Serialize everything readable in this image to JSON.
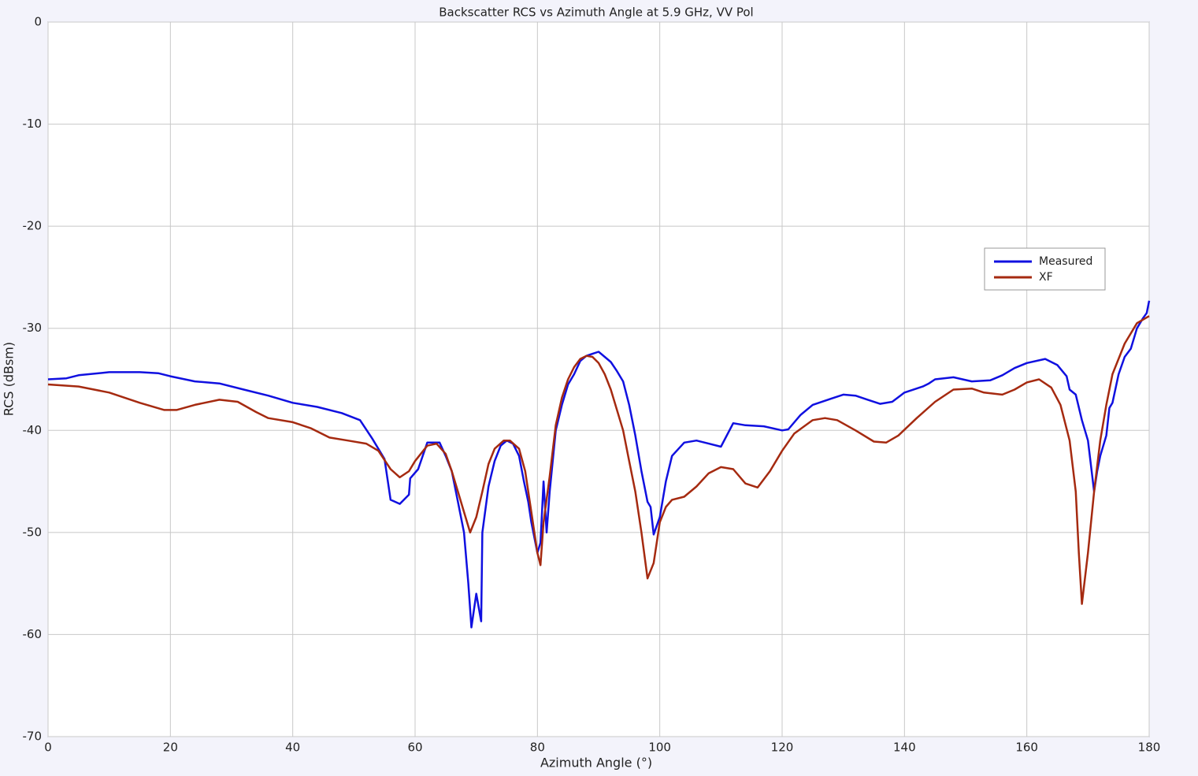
{
  "chart_data": {
    "type": "line",
    "title": "Backscatter RCS vs Azimuth Angle at 5.9 GHz, VV Pol",
    "x_label": "Azimuth Angle (°)",
    "y_label": "RCS (dBsm)",
    "xlim": [
      0,
      180
    ],
    "xticks": [
      0,
      20,
      40,
      60,
      80,
      100,
      120,
      140,
      160,
      180
    ],
    "ylim": [
      -70,
      0
    ],
    "yticks": [
      0,
      -10,
      -20,
      -30,
      -40,
      -50,
      -60,
      -70
    ],
    "grid": true,
    "legend": "right",
    "series": [
      {
        "name": "Measured",
        "color": "#1010e0",
        "x": [
          0,
          3,
          5,
          10,
          15,
          18,
          20,
          24,
          28,
          32,
          36,
          40,
          44,
          48,
          51,
          53,
          55,
          56,
          57.5,
          59,
          59.2,
          60.5,
          62,
          64,
          65,
          66,
          67,
          68,
          68.7,
          69.2,
          70,
          70.8,
          71,
          72,
          73,
          74,
          75,
          76,
          77,
          77.8,
          78.5,
          79,
          80,
          80.5,
          81,
          81.5,
          82,
          83,
          84,
          85,
          86,
          87,
          88,
          89,
          90,
          91,
          92,
          93,
          94,
          95,
          96,
          97,
          98,
          98.5,
          99,
          100,
          101,
          102,
          104,
          106,
          108,
          110,
          112,
          114,
          117,
          120,
          121,
          123,
          125,
          128,
          130,
          132,
          134,
          136,
          138,
          140,
          143,
          144,
          145,
          148,
          151,
          154,
          156,
          158,
          160,
          163,
          165,
          166.5,
          167,
          168,
          169,
          170,
          171,
          171.5,
          172,
          173,
          173.5,
          174,
          175,
          176,
          177,
          178,
          179,
          179.6,
          180
        ],
        "values": [
          -35,
          -34.9,
          -34.6,
          -34.3,
          -34.3,
          -34.4,
          -34.7,
          -35.2,
          -35.4,
          -36,
          -36.6,
          -37.3,
          -37.7,
          -38.3,
          -39,
          -40.8,
          -42.8,
          -46.8,
          -47.2,
          -46.3,
          -44.7,
          -43.8,
          -41.2,
          -41.2,
          -42.5,
          -44,
          -47,
          -50,
          -55,
          -59.3,
          -56,
          -58.7,
          -50,
          -45.5,
          -43,
          -41.5,
          -41,
          -41.3,
          -42.5,
          -45,
          -47,
          -49,
          -52,
          -51,
          -45,
          -50,
          -46,
          -40,
          -37.5,
          -35.5,
          -34.5,
          -33.2,
          -32.7,
          -32.5,
          -32.3,
          -32.8,
          -33.3,
          -34.2,
          -35.2,
          -37.5,
          -40.5,
          -44,
          -47,
          -47.5,
          -50.2,
          -48.5,
          -45,
          -42.5,
          -41.2,
          -41,
          -41.3,
          -41.6,
          -39.3,
          -39.5,
          -39.6,
          -40,
          -39.9,
          -38.5,
          -37.5,
          -36.9,
          -36.5,
          -36.6,
          -37,
          -37.4,
          -37.2,
          -36.3,
          -35.7,
          -35.4,
          -35,
          -34.8,
          -35.2,
          -35.1,
          -34.6,
          -33.9,
          -33.4,
          -33,
          -33.6,
          -34.7,
          -36,
          -36.5,
          -39,
          -41,
          -46,
          -44,
          -42.5,
          -40.5,
          -37.8,
          -37.3,
          -34.5,
          -32.8,
          -32,
          -30,
          -29,
          -28.5,
          -27.3
        ]
      },
      {
        "name": "XF",
        "color": "#a52a10",
        "x": [
          0,
          5,
          10,
          15,
          19,
          21,
          24,
          28,
          31,
          34,
          36,
          40,
          43,
          46,
          49,
          52,
          54,
          56,
          57.5,
          59,
          60,
          62,
          63.5,
          65,
          66,
          67,
          68,
          69,
          70,
          71,
          72,
          73,
          74.5,
          75.5,
          77,
          78,
          79,
          80,
          80.5,
          81,
          82,
          83,
          84,
          85,
          86,
          87,
          88,
          89,
          90,
          91,
          92,
          93,
          94,
          95,
          96,
          97,
          98,
          99,
          100,
          101,
          102,
          104,
          106,
          108,
          110,
          112,
          114,
          116,
          118,
          120,
          122,
          125,
          127,
          129,
          132,
          135,
          137,
          139,
          142,
          145,
          148,
          151,
          153,
          156,
          158,
          160,
          162,
          164,
          165.5,
          167,
          168,
          168.5,
          169,
          170,
          171,
          172,
          173,
          174,
          176,
          178,
          180
        ],
        "values": [
          -35.5,
          -35.7,
          -36.3,
          -37.3,
          -38,
          -38,
          -37.5,
          -37,
          -37.2,
          -38.2,
          -38.8,
          -39.2,
          -39.8,
          -40.7,
          -41,
          -41.3,
          -42,
          -43.8,
          -44.6,
          -44,
          -43,
          -41.5,
          -41.3,
          -42.3,
          -44,
          -46,
          -48,
          -50,
          -48.5,
          -46,
          -43.3,
          -41.8,
          -41,
          -41,
          -41.8,
          -44,
          -48,
          -52,
          -53.2,
          -49,
          -44.5,
          -39.5,
          -36.8,
          -35,
          -33.8,
          -33,
          -32.7,
          -32.8,
          -33.4,
          -34.5,
          -36,
          -38,
          -40,
          -43,
          -46,
          -50,
          -54.5,
          -53,
          -49,
          -47.5,
          -46.8,
          -46.5,
          -45.5,
          -44.2,
          -43.6,
          -43.8,
          -45.2,
          -45.6,
          -44,
          -42,
          -40.3,
          -39,
          -38.8,
          -39,
          -40,
          -41.1,
          -41.2,
          -40.5,
          -38.8,
          -37.2,
          -36,
          -35.9,
          -36.3,
          -36.5,
          -36,
          -35.3,
          -35,
          -35.8,
          -37.5,
          -41,
          -46,
          -52,
          -57,
          -52,
          -46,
          -41,
          -37.5,
          -34.5,
          -31.5,
          -29.5,
          -28.8
        ]
      }
    ]
  }
}
